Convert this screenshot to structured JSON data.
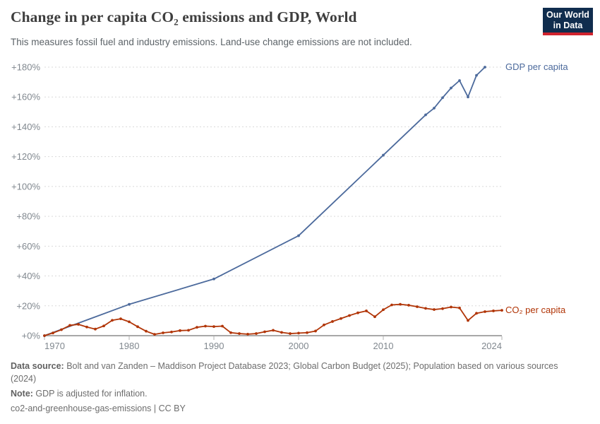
{
  "header": {
    "title": "Change in per capita CO₂ emissions and GDP, World",
    "subtitle": "This measures fossil fuel and industry emissions. Land-use change emissions are not included.",
    "logo": {
      "line1": "Our World",
      "line2": "in Data",
      "bg_color": "#102d4e",
      "accent_color": "#d0232e"
    }
  },
  "chart_data": {
    "type": "line",
    "title": "Change in per capita CO₂ emissions and GDP, World",
    "xlabel": "",
    "ylabel": "",
    "grid": "dashed horizontal gridlines",
    "legend_position": "labels at right end of each line",
    "axes": {
      "x_min": 1970,
      "x_max": 2024,
      "y_min": 0,
      "y_max": 180,
      "x_ticks": [
        {
          "value": 1970,
          "label": "1970",
          "anchor": "start"
        },
        {
          "value": 1980,
          "label": "1980",
          "anchor": "middle"
        },
        {
          "value": 1990,
          "label": "1990",
          "anchor": "middle"
        },
        {
          "value": 2000,
          "label": "2000",
          "anchor": "middle"
        },
        {
          "value": 2010,
          "label": "2010",
          "anchor": "middle"
        },
        {
          "value": 2024,
          "label": "2024",
          "anchor": "end"
        }
      ],
      "y_ticks": [
        {
          "value": 0,
          "label": "+0%"
        },
        {
          "value": 20,
          "label": "+20%"
        },
        {
          "value": 40,
          "label": "+40%"
        },
        {
          "value": 60,
          "label": "+60%"
        },
        {
          "value": 80,
          "label": "+80%"
        },
        {
          "value": 100,
          "label": "+100%"
        },
        {
          "value": 120,
          "label": "+120%"
        },
        {
          "value": 140,
          "label": "+140%"
        },
        {
          "value": 160,
          "label": "+160%"
        },
        {
          "value": 180,
          "label": "+180%"
        }
      ]
    },
    "colors": {
      "grid": "#d9d9d9",
      "zero_axis": "#a8a8a8",
      "tick_mark": "#b0b0b0",
      "tick_label": "#81888f"
    },
    "series": [
      {
        "name": "GDP per capita",
        "end_label": "GDP per capita",
        "color": "#4c6a9c",
        "x": [
          1970,
          1980,
          1990,
          2000,
          2010,
          2015,
          2016,
          2017,
          2018,
          2019,
          2020,
          2021,
          2022
        ],
        "values": [
          0,
          21,
          38,
          67,
          121,
          148,
          152.5,
          159.5,
          166,
          171,
          160,
          174.5,
          180
        ]
      },
      {
        "name": "CO₂ per capita",
        "end_label": "CO₂ per capita",
        "color": "#b13507",
        "x": [
          1970,
          1971,
          1972,
          1973,
          1974,
          1975,
          1976,
          1977,
          1978,
          1979,
          1980,
          1981,
          1982,
          1983,
          1984,
          1985,
          1986,
          1987,
          1988,
          1989,
          1990,
          1991,
          1992,
          1993,
          1994,
          1995,
          1996,
          1997,
          1998,
          1999,
          2000,
          2001,
          2002,
          2003,
          2004,
          2005,
          2006,
          2007,
          2008,
          2009,
          2010,
          2011,
          2012,
          2013,
          2014,
          2015,
          2016,
          2017,
          2018,
          2019,
          2020,
          2021,
          2022,
          2023,
          2024
        ],
        "values": [
          0,
          1.8,
          4,
          6.9,
          7.6,
          5.8,
          4.4,
          6.5,
          10.3,
          11.3,
          9.3,
          6,
          3,
          0.9,
          1.9,
          2.5,
          3.4,
          3.6,
          5.6,
          6.4,
          6.1,
          6.4,
          2,
          1.4,
          1,
          1.4,
          2.6,
          3.6,
          2.2,
          1.4,
          1.7,
          2,
          3.1,
          7.2,
          9.5,
          11.5,
          13.5,
          15.3,
          16.6,
          12.7,
          17.4,
          20.6,
          21,
          20.4,
          19.4,
          18.3,
          17.5,
          18.1,
          19.2,
          18.6,
          10.2,
          15,
          16.1,
          16.6,
          17
        ]
      }
    ]
  },
  "footer": {
    "data_source_label": "Data source:",
    "data_source_text": " Bolt and van Zanden – Maddison Project Database 2023; Global Carbon Budget (2025); Population based on various sources (2024)",
    "note_label": "Note:",
    "note_text": " GDP is adjusted for inflation.",
    "license_text": "co2-and-greenhouse-gas-emissions | CC BY"
  }
}
